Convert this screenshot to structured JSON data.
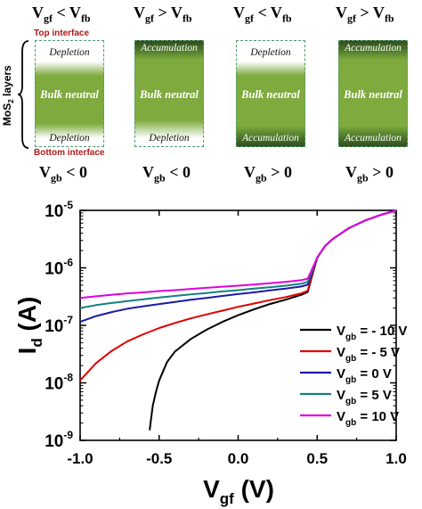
{
  "top_diagram": {
    "gate_conditions": [
      {
        "main": "V",
        "sub1": "gf",
        "op": " < V",
        "sub2": "fb"
      },
      {
        "main": "V",
        "sub1": "gf",
        "op": " > V",
        "sub2": "fb"
      },
      {
        "main": "V",
        "sub1": "gf",
        "op": " < V",
        "sub2": "fb"
      },
      {
        "main": "V",
        "sub1": "gf",
        "op": " > V",
        "sub2": "fb"
      }
    ],
    "back_conditions": [
      {
        "main": "V",
        "sub": "gb",
        "rest": " < 0"
      },
      {
        "main": "V",
        "sub": "gb",
        "rest": " < 0"
      },
      {
        "main": "V",
        "sub": "gb",
        "rest": " > 0"
      },
      {
        "main": "V",
        "sub": "gb",
        "rest": " > 0"
      }
    ],
    "panels": [
      {
        "top": "Depletion",
        "middle": "Bulk neutral",
        "bottom": "Depletion"
      },
      {
        "top": "Accumulation",
        "middle": "Bulk neutral",
        "bottom": "Depletion"
      },
      {
        "top": "Depletion",
        "middle": "Bulk neutral",
        "bottom": "Accumulation"
      },
      {
        "top": "Accumulation",
        "middle": "Bulk neutral",
        "bottom": "Accumulation"
      }
    ],
    "top_interface_label": "Top interface",
    "bottom_interface_label": "Bottom interface",
    "layer_label": {
      "main": "MoS",
      "sub": "2",
      "rest": " layers"
    },
    "colors": {
      "bulk": "#7faa3e",
      "accumulation": "#2f4a1c",
      "dash": "#4f9a6e",
      "interface_text": "#b01818"
    }
  },
  "chart_data": {
    "type": "line",
    "y_scale": "log",
    "xlim": [
      -1.0,
      1.0
    ],
    "ylim": [
      1e-09,
      1e-05
    ],
    "x_ticks": [
      "-1.0",
      "-0.5",
      "0.0",
      "0.5",
      "1.0"
    ],
    "y_ticks": [
      {
        "base": "10",
        "exp": "-9"
      },
      {
        "base": "10",
        "exp": "-8"
      },
      {
        "base": "10",
        "exp": "-7"
      },
      {
        "base": "10",
        "exp": "-6"
      },
      {
        "base": "10",
        "exp": "-5"
      }
    ],
    "xlabel": {
      "main": "V",
      "sub": "gf",
      "rest": " (V)"
    },
    "ylabel": {
      "main": "I",
      "sub": "d",
      "rest": " (A)"
    },
    "legend": {
      "placement": "bottom-right",
      "main": "V",
      "sub": "gb"
    },
    "series": [
      {
        "name": "= - 10 V",
        "color": "#000000",
        "x": [
          -0.56,
          -0.55,
          -0.54,
          -0.52,
          -0.5,
          -0.45,
          -0.4,
          -0.3,
          -0.2,
          -0.1,
          0.0,
          0.1,
          0.2,
          0.3,
          0.4,
          0.44,
          0.46,
          0.5,
          0.55,
          0.6,
          0.7,
          0.8,
          0.9,
          1.0
        ],
        "y": [
          1.5e-09,
          2.5e-09,
          4e-09,
          7e-09,
          1.1e-08,
          2.3e-08,
          3.5e-08,
          5.8e-08,
          8.4e-08,
          1.15e-07,
          1.5e-07,
          1.9e-07,
          2.35e-07,
          2.8e-07,
          3.4e-07,
          3.8e-07,
          6e-07,
          1.5e-06,
          2.4e-06,
          3.2e-06,
          4.9e-06,
          6.6e-06,
          8.3e-06,
          1e-05
        ]
      },
      {
        "name": "=  - 5 V",
        "color": "#e00000",
        "x": [
          -1.0,
          -0.9,
          -0.8,
          -0.7,
          -0.6,
          -0.5,
          -0.4,
          -0.3,
          -0.2,
          -0.1,
          0.0,
          0.1,
          0.2,
          0.3,
          0.4,
          0.44,
          0.46,
          0.5,
          0.55,
          0.6,
          0.7,
          0.8,
          0.9,
          1.0
        ],
        "y": [
          1.1e-08,
          2.2e-08,
          3.6e-08,
          5.3e-08,
          7e-08,
          9e-08,
          1.1e-07,
          1.32e-07,
          1.55e-07,
          1.8e-07,
          2.1e-07,
          2.4e-07,
          2.75e-07,
          3.1e-07,
          3.6e-07,
          4e-07,
          6.3e-07,
          1.5e-06,
          2.4e-06,
          3.2e-06,
          4.9e-06,
          6.6e-06,
          8.3e-06,
          1e-05
        ]
      },
      {
        "name": "=   0 V",
        "color": "#1a1aa6",
        "x": [
          -1.0,
          -0.9,
          -0.8,
          -0.7,
          -0.6,
          -0.5,
          -0.4,
          -0.3,
          -0.2,
          -0.1,
          0.0,
          0.1,
          0.2,
          0.3,
          0.4,
          0.44,
          0.46,
          0.5,
          0.55,
          0.6,
          0.7,
          0.8,
          0.9,
          1.0
        ],
        "y": [
          1.15e-07,
          1.45e-07,
          1.7e-07,
          1.95e-07,
          2.15e-07,
          2.35e-07,
          2.55e-07,
          2.8e-07,
          3e-07,
          3.25e-07,
          3.5e-07,
          3.75e-07,
          4.05e-07,
          4.35e-07,
          4.75e-07,
          5.1e-07,
          7.2e-07,
          1.5e-06,
          2.4e-06,
          3.2e-06,
          4.9e-06,
          6.6e-06,
          8.3e-06,
          1e-05
        ]
      },
      {
        "name": "=   5 V",
        "color": "#138080",
        "x": [
          -1.0,
          -0.9,
          -0.8,
          -0.7,
          -0.6,
          -0.5,
          -0.4,
          -0.3,
          -0.2,
          -0.1,
          0.0,
          0.1,
          0.2,
          0.3,
          0.4,
          0.44,
          0.46,
          0.5,
          0.55,
          0.6,
          0.7,
          0.8,
          0.9,
          1.0
        ],
        "y": [
          2e-07,
          2.25e-07,
          2.45e-07,
          2.65e-07,
          2.85e-07,
          3.05e-07,
          3.25e-07,
          3.45e-07,
          3.65e-07,
          3.9e-07,
          4.1e-07,
          4.35e-07,
          4.6e-07,
          4.9e-07,
          5.3e-07,
          5.7e-07,
          7.8e-07,
          1.5e-06,
          2.4e-06,
          3.2e-06,
          4.9e-06,
          6.6e-06,
          8.3e-06,
          1e-05
        ]
      },
      {
        "name": "=  10 V",
        "color": "#e000e0",
        "x": [
          -1.0,
          -0.9,
          -0.8,
          -0.7,
          -0.6,
          -0.5,
          -0.4,
          -0.3,
          -0.2,
          -0.1,
          0.0,
          0.1,
          0.2,
          0.3,
          0.4,
          0.44,
          0.46,
          0.5,
          0.55,
          0.6,
          0.7,
          0.8,
          0.9,
          1.0
        ],
        "y": [
          3e-07,
          3.2e-07,
          3.4e-07,
          3.6e-07,
          3.75e-07,
          3.95e-07,
          4.1e-07,
          4.3e-07,
          4.5e-07,
          4.7e-07,
          4.9e-07,
          5.15e-07,
          5.4e-07,
          5.7e-07,
          6.1e-07,
          6.5e-07,
          8.5e-07,
          1.5e-06,
          2.4e-06,
          3.2e-06,
          4.9e-06,
          6.6e-06,
          8.3e-06,
          1e-05
        ]
      }
    ]
  }
}
